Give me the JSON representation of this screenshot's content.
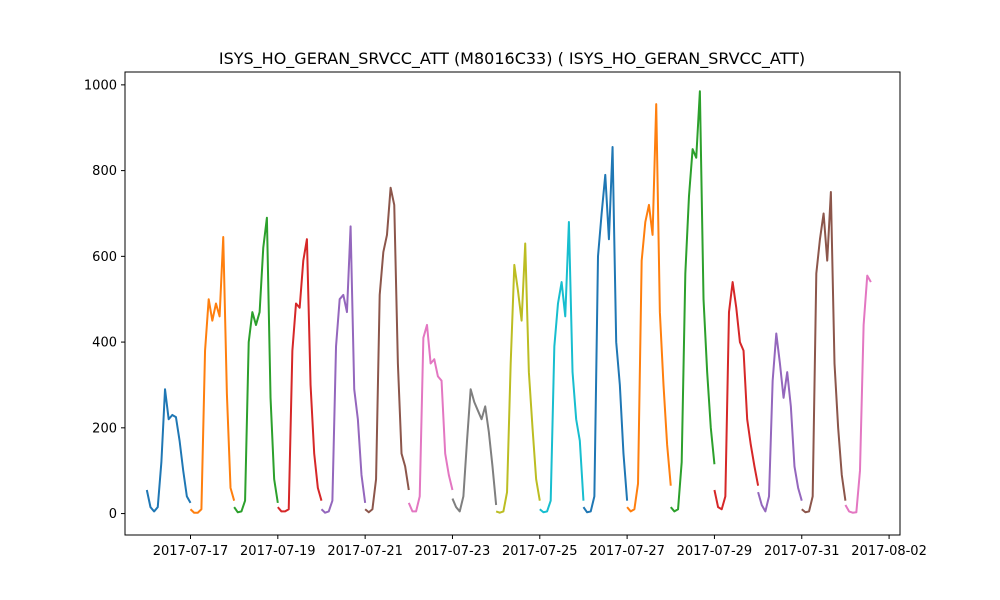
{
  "chart_data": {
    "type": "line",
    "title": "ISYS_HO_GERAN_SRVCC_ATT (M8016C33) ( ISYS_HO_GERAN_SRVCC_ATT)",
    "xlabel": "",
    "ylabel": "",
    "grid": false,
    "legend": "none",
    "xlim": [
      "2017-07-15T12:00",
      "2017-08-02T06:00"
    ],
    "ylim": [
      -50,
      1030
    ],
    "x_ticks": [
      "2017-07-17",
      "2017-07-19",
      "2017-07-21",
      "2017-07-23",
      "2017-07-25",
      "2017-07-27",
      "2017-07-29",
      "2017-07-31",
      "2017-08-02"
    ],
    "y_ticks": [
      0,
      200,
      400,
      600,
      800,
      1000
    ],
    "series": [
      {
        "color": "#1f77b4",
        "x": [
          "2017-07-16T00:00",
          "2017-07-16T02:00",
          "2017-07-16T04:00",
          "2017-07-16T06:00",
          "2017-07-16T08:00",
          "2017-07-16T10:00",
          "2017-07-16T12:00",
          "2017-07-16T14:00",
          "2017-07-16T16:00",
          "2017-07-16T18:00",
          "2017-07-16T20:00",
          "2017-07-16T22:00",
          "2017-07-17T00:00"
        ],
        "values": [
          55,
          15,
          5,
          15,
          120,
          290,
          220,
          230,
          225,
          170,
          100,
          40,
          25
        ]
      },
      {
        "color": "#ff7f0e",
        "x": [
          "2017-07-17T00:00",
          "2017-07-17T02:00",
          "2017-07-17T04:00",
          "2017-07-17T06:00",
          "2017-07-17T08:00",
          "2017-07-17T10:00",
          "2017-07-17T12:00",
          "2017-07-17T14:00",
          "2017-07-17T16:00",
          "2017-07-17T18:00",
          "2017-07-17T20:00",
          "2017-07-17T22:00",
          "2017-07-18T00:00"
        ],
        "values": [
          10,
          2,
          2,
          10,
          380,
          500,
          450,
          490,
          460,
          645,
          280,
          60,
          30
        ]
      },
      {
        "color": "#2ca02c",
        "x": [
          "2017-07-18T00:00",
          "2017-07-18T02:00",
          "2017-07-18T04:00",
          "2017-07-18T06:00",
          "2017-07-18T08:00",
          "2017-07-18T10:00",
          "2017-07-18T12:00",
          "2017-07-18T14:00",
          "2017-07-18T16:00",
          "2017-07-18T18:00",
          "2017-07-18T20:00",
          "2017-07-18T22:00",
          "2017-07-19T00:00"
        ],
        "values": [
          15,
          3,
          5,
          30,
          400,
          470,
          440,
          470,
          620,
          690,
          270,
          80,
          25
        ]
      },
      {
        "color": "#d62728",
        "x": [
          "2017-07-19T00:00",
          "2017-07-19T02:00",
          "2017-07-19T04:00",
          "2017-07-19T06:00",
          "2017-07-19T08:00",
          "2017-07-19T10:00",
          "2017-07-19T12:00",
          "2017-07-19T14:00",
          "2017-07-19T16:00",
          "2017-07-19T18:00",
          "2017-07-19T20:00",
          "2017-07-19T22:00",
          "2017-07-20T00:00"
        ],
        "values": [
          15,
          5,
          5,
          10,
          380,
          490,
          480,
          590,
          640,
          300,
          140,
          60,
          30
        ]
      },
      {
        "color": "#9467bd",
        "x": [
          "2017-07-20T00:00",
          "2017-07-20T02:00",
          "2017-07-20T04:00",
          "2017-07-20T06:00",
          "2017-07-20T08:00",
          "2017-07-20T10:00",
          "2017-07-20T12:00",
          "2017-07-20T14:00",
          "2017-07-20T16:00",
          "2017-07-20T18:00",
          "2017-07-20T20:00",
          "2017-07-20T22:00",
          "2017-07-21T00:00"
        ],
        "values": [
          10,
          2,
          5,
          30,
          390,
          500,
          510,
          470,
          670,
          290,
          220,
          90,
          25
        ]
      },
      {
        "color": "#8c564b",
        "x": [
          "2017-07-21T00:00",
          "2017-07-21T02:00",
          "2017-07-21T04:00",
          "2017-07-21T06:00",
          "2017-07-21T08:00",
          "2017-07-21T10:00",
          "2017-07-21T12:00",
          "2017-07-21T14:00",
          "2017-07-21T16:00",
          "2017-07-21T18:00",
          "2017-07-21T20:00",
          "2017-07-21T22:00",
          "2017-07-22T00:00"
        ],
        "values": [
          10,
          3,
          10,
          80,
          510,
          610,
          650,
          760,
          720,
          350,
          140,
          110,
          55
        ]
      },
      {
        "color": "#e377c2",
        "x": [
          "2017-07-22T00:00",
          "2017-07-22T02:00",
          "2017-07-22T04:00",
          "2017-07-22T06:00",
          "2017-07-22T08:00",
          "2017-07-22T10:00",
          "2017-07-22T12:00",
          "2017-07-22T14:00",
          "2017-07-22T16:00",
          "2017-07-22T18:00",
          "2017-07-22T20:00",
          "2017-07-22T22:00",
          "2017-07-23T00:00"
        ],
        "values": [
          25,
          5,
          5,
          40,
          410,
          440,
          350,
          360,
          320,
          310,
          140,
          90,
          55
        ]
      },
      {
        "color": "#7f7f7f",
        "x": [
          "2017-07-23T00:00",
          "2017-07-23T02:00",
          "2017-07-23T04:00",
          "2017-07-23T06:00",
          "2017-07-23T08:00",
          "2017-07-23T10:00",
          "2017-07-23T12:00",
          "2017-07-23T14:00",
          "2017-07-23T16:00",
          "2017-07-23T18:00",
          "2017-07-23T20:00",
          "2017-07-23T22:00",
          "2017-07-24T00:00"
        ],
        "values": [
          35,
          15,
          5,
          40,
          170,
          290,
          260,
          240,
          220,
          250,
          190,
          110,
          20
        ]
      },
      {
        "color": "#bcbd22",
        "x": [
          "2017-07-24T00:00",
          "2017-07-24T02:00",
          "2017-07-24T04:00",
          "2017-07-24T06:00",
          "2017-07-24T08:00",
          "2017-07-24T10:00",
          "2017-07-24T12:00",
          "2017-07-24T14:00",
          "2017-07-24T16:00",
          "2017-07-24T18:00",
          "2017-07-24T20:00",
          "2017-07-24T22:00",
          "2017-07-25T00:00"
        ],
        "values": [
          5,
          2,
          5,
          50,
          350,
          580,
          520,
          450,
          630,
          330,
          200,
          80,
          30
        ]
      },
      {
        "color": "#17becf",
        "x": [
          "2017-07-25T00:00",
          "2017-07-25T02:00",
          "2017-07-25T04:00",
          "2017-07-25T06:00",
          "2017-07-25T08:00",
          "2017-07-25T10:00",
          "2017-07-25T12:00",
          "2017-07-25T14:00",
          "2017-07-25T16:00",
          "2017-07-25T18:00",
          "2017-07-25T20:00",
          "2017-07-25T22:00",
          "2017-07-26T00:00"
        ],
        "values": [
          10,
          3,
          5,
          30,
          390,
          490,
          540,
          460,
          680,
          330,
          220,
          170,
          30
        ]
      },
      {
        "color": "#1f77b4",
        "x": [
          "2017-07-26T00:00",
          "2017-07-26T02:00",
          "2017-07-26T04:00",
          "2017-07-26T06:00",
          "2017-07-26T08:00",
          "2017-07-26T10:00",
          "2017-07-26T12:00",
          "2017-07-26T14:00",
          "2017-07-26T16:00",
          "2017-07-26T18:00",
          "2017-07-26T20:00",
          "2017-07-26T22:00",
          "2017-07-27T00:00"
        ],
        "values": [
          15,
          3,
          5,
          40,
          600,
          700,
          790,
          640,
          855,
          400,
          300,
          140,
          30
        ]
      },
      {
        "color": "#ff7f0e",
        "x": [
          "2017-07-27T00:00",
          "2017-07-27T02:00",
          "2017-07-27T04:00",
          "2017-07-27T06:00",
          "2017-07-27T08:00",
          "2017-07-27T10:00",
          "2017-07-27T12:00",
          "2017-07-27T14:00",
          "2017-07-27T16:00",
          "2017-07-27T18:00",
          "2017-07-27T20:00",
          "2017-07-27T22:00",
          "2017-07-28T00:00"
        ],
        "values": [
          15,
          5,
          10,
          70,
          590,
          680,
          720,
          650,
          955,
          470,
          300,
          160,
          65
        ]
      },
      {
        "color": "#2ca02c",
        "x": [
          "2017-07-28T00:00",
          "2017-07-28T02:00",
          "2017-07-28T04:00",
          "2017-07-28T06:00",
          "2017-07-28T08:00",
          "2017-07-28T10:00",
          "2017-07-28T12:00",
          "2017-07-28T14:00",
          "2017-07-28T16:00",
          "2017-07-28T18:00",
          "2017-07-28T20:00",
          "2017-07-28T22:00",
          "2017-07-29T00:00"
        ],
        "values": [
          15,
          5,
          10,
          120,
          560,
          740,
          850,
          830,
          985,
          500,
          330,
          200,
          115
        ]
      },
      {
        "color": "#d62728",
        "x": [
          "2017-07-29T00:00",
          "2017-07-29T02:00",
          "2017-07-29T04:00",
          "2017-07-29T06:00",
          "2017-07-29T08:00",
          "2017-07-29T10:00",
          "2017-07-29T12:00",
          "2017-07-29T14:00",
          "2017-07-29T16:00",
          "2017-07-29T18:00",
          "2017-07-29T20:00",
          "2017-07-29T22:00",
          "2017-07-30T00:00"
        ],
        "values": [
          55,
          15,
          10,
          40,
          470,
          540,
          480,
          400,
          380,
          220,
          160,
          110,
          65
        ]
      },
      {
        "color": "#9467bd",
        "x": [
          "2017-07-30T00:00",
          "2017-07-30T02:00",
          "2017-07-30T04:00",
          "2017-07-30T06:00",
          "2017-07-30T08:00",
          "2017-07-30T10:00",
          "2017-07-30T12:00",
          "2017-07-30T14:00",
          "2017-07-30T16:00",
          "2017-07-30T18:00",
          "2017-07-30T20:00",
          "2017-07-30T22:00",
          "2017-07-31T00:00"
        ],
        "values": [
          50,
          20,
          5,
          40,
          310,
          420,
          350,
          270,
          330,
          250,
          110,
          60,
          30
        ]
      },
      {
        "color": "#8c564b",
        "x": [
          "2017-07-31T00:00",
          "2017-07-31T02:00",
          "2017-07-31T04:00",
          "2017-07-31T06:00",
          "2017-07-31T08:00",
          "2017-07-31T10:00",
          "2017-07-31T12:00",
          "2017-07-31T14:00",
          "2017-07-31T16:00",
          "2017-07-31T18:00",
          "2017-07-31T20:00",
          "2017-07-31T22:00",
          "2017-08-01T00:00"
        ],
        "values": [
          10,
          3,
          5,
          40,
          560,
          640,
          700,
          590,
          750,
          350,
          200,
          90,
          30
        ]
      },
      {
        "color": "#e377c2",
        "x": [
          "2017-08-01T00:00",
          "2017-08-01T02:00",
          "2017-08-01T04:00",
          "2017-08-01T06:00",
          "2017-08-01T08:00",
          "2017-08-01T10:00",
          "2017-08-01T12:00",
          "2017-08-01T14:00"
        ],
        "values": [
          20,
          5,
          2,
          3,
          100,
          440,
          555,
          540
        ]
      }
    ]
  }
}
